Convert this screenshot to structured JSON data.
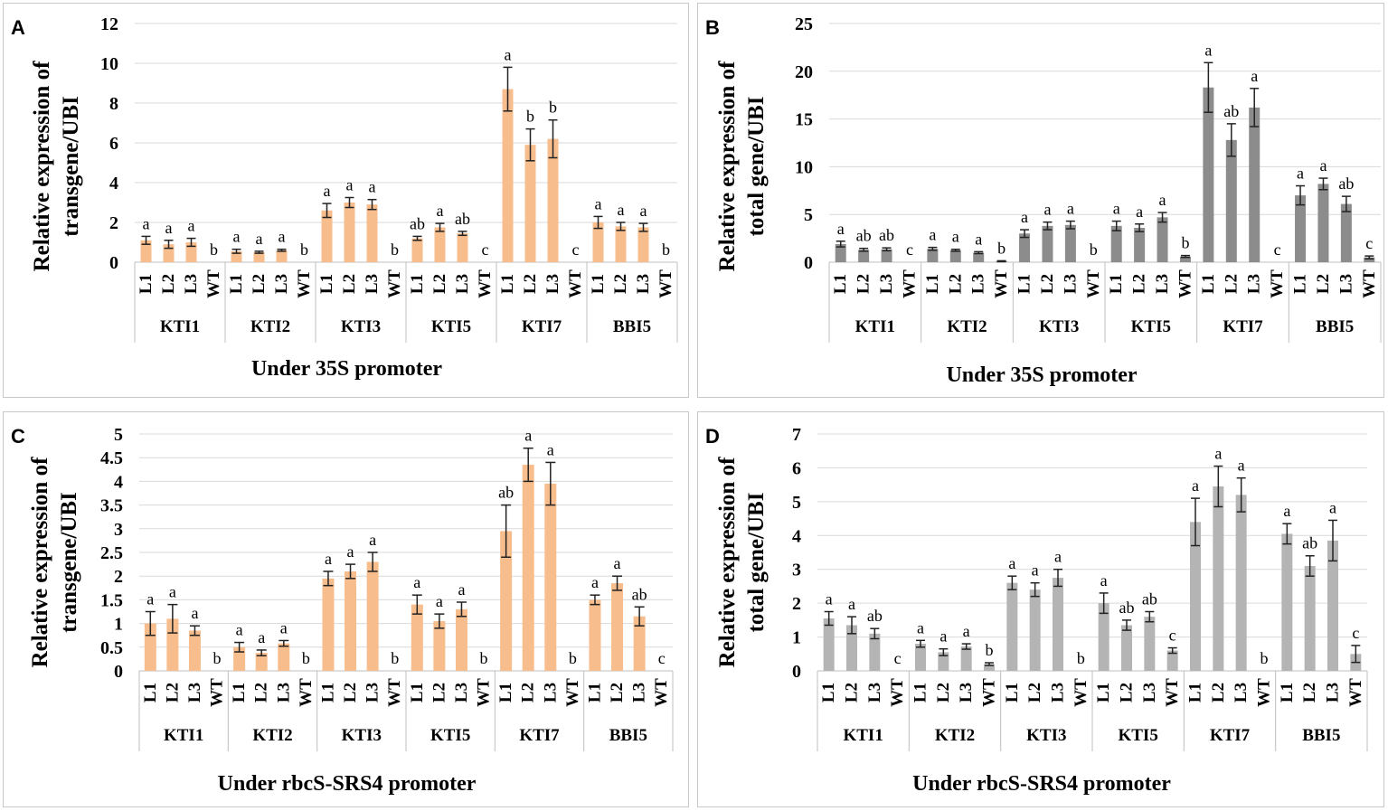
{
  "colors": {
    "orange_bar": "#f7bd8c",
    "orange_edge": "#e8995a",
    "dark_gray_bar": "#8c8c8c",
    "light_gray_bar": "#b4b4b4",
    "grid": "#d9d9d9",
    "axis": "#bfbfbf"
  },
  "chart_data": [
    {
      "type": "bar",
      "panel_label": "A",
      "ylabel_line1": "Relative  expression of",
      "ylabel_line2": "transgene/UBI",
      "footer": "Under 35S promoter",
      "ylim": [
        0,
        12
      ],
      "yticks": [
        "0",
        "2",
        "4",
        "6",
        "8",
        "10",
        "12"
      ],
      "categories": [
        "L1",
        "L2",
        "L3",
        "WT"
      ],
      "groups": [
        "KTI1",
        "KTI2",
        "KTI3",
        "KTI5",
        "KTI7",
        "BBI5"
      ],
      "bar_color": "orange",
      "values": [
        [
          1.1,
          0.9,
          1.0,
          0
        ],
        [
          0.55,
          0.5,
          0.6,
          0
        ],
        [
          2.6,
          3.0,
          2.9,
          0
        ],
        [
          1.2,
          1.75,
          1.45,
          0
        ],
        [
          8.7,
          5.9,
          6.2,
          0
        ],
        [
          2.0,
          1.8,
          1.75,
          0
        ]
      ],
      "errors": [
        [
          0.2,
          0.2,
          0.2,
          0
        ],
        [
          0.1,
          0.05,
          0.05,
          0
        ],
        [
          0.35,
          0.25,
          0.25,
          0
        ],
        [
          0.1,
          0.2,
          0.1,
          0
        ],
        [
          1.1,
          0.8,
          0.95,
          0
        ],
        [
          0.3,
          0.2,
          0.2,
          0
        ]
      ],
      "letters": [
        [
          "a",
          "a",
          "a",
          "b"
        ],
        [
          "a",
          "a",
          "a",
          "b"
        ],
        [
          "a",
          "a",
          "a",
          "b"
        ],
        [
          "ab",
          "a",
          "ab",
          "c"
        ],
        [
          "a",
          "b",
          "b",
          "c"
        ],
        [
          "a",
          "a",
          "a",
          "b"
        ]
      ]
    },
    {
      "type": "bar",
      "panel_label": "B",
      "ylabel_line1": "Relative expression of",
      "ylabel_line2": "total gene/UBI",
      "footer": "Under 35S promoter",
      "ylim": [
        0,
        25
      ],
      "yticks": [
        "0",
        "5",
        "10",
        "15",
        "20",
        "25"
      ],
      "categories": [
        "L1",
        "L2",
        "L3",
        "WT"
      ],
      "groups": [
        "KTI1",
        "KTI2",
        "KTI3",
        "KTI5",
        "KTI7",
        "BBI5"
      ],
      "bar_color": "dark_gray",
      "values": [
        [
          1.9,
          1.3,
          1.35,
          0
        ],
        [
          1.4,
          1.25,
          1.0,
          0.1
        ],
        [
          3.0,
          3.8,
          3.9,
          0
        ],
        [
          3.8,
          3.6,
          4.7,
          0.6
        ],
        [
          18.3,
          12.8,
          16.2,
          0
        ],
        [
          7.0,
          8.2,
          6.1,
          0.5
        ]
      ],
      "errors": [
        [
          0.3,
          0.15,
          0.15,
          0
        ],
        [
          0.15,
          0.1,
          0.1,
          0.05
        ],
        [
          0.4,
          0.4,
          0.4,
          0
        ],
        [
          0.5,
          0.4,
          0.5,
          0.1
        ],
        [
          2.6,
          1.7,
          2.0,
          0
        ],
        [
          1.0,
          0.6,
          0.8,
          0.15
        ]
      ],
      "letters": [
        [
          "a",
          "ab",
          "ab",
          "c"
        ],
        [
          "a",
          "a",
          "a",
          "b"
        ],
        [
          "a",
          "a",
          "a",
          "b"
        ],
        [
          "a",
          "a",
          "a",
          "b"
        ],
        [
          "a",
          "ab",
          "a",
          "c"
        ],
        [
          "a",
          "a",
          "ab",
          "c"
        ]
      ]
    },
    {
      "type": "bar",
      "panel_label": "C",
      "ylabel_line1": "Relative expression of",
      "ylabel_line2": "transgene/UBI",
      "footer": "Under rbcS-SRS4 promoter",
      "ylim": [
        0,
        5
      ],
      "yticks": [
        "0",
        "0.5",
        "1",
        "1.5",
        "2",
        "2.5",
        "3",
        "3.5",
        "4",
        "4.5",
        "5"
      ],
      "categories": [
        "L1",
        "L2",
        "L3",
        "WT"
      ],
      "groups": [
        "KTI1",
        "KTI2",
        "KTI3",
        "KTI5",
        "KTI7",
        "BBI5"
      ],
      "bar_color": "orange",
      "values": [
        [
          1.0,
          1.1,
          0.85,
          0
        ],
        [
          0.5,
          0.38,
          0.58,
          0
        ],
        [
          1.95,
          2.1,
          2.3,
          0
        ],
        [
          1.4,
          1.05,
          1.3,
          0
        ],
        [
          2.95,
          4.35,
          3.95,
          0
        ],
        [
          1.5,
          1.85,
          1.15,
          0
        ]
      ],
      "errors": [
        [
          0.25,
          0.3,
          0.1,
          0
        ],
        [
          0.1,
          0.06,
          0.06,
          0
        ],
        [
          0.15,
          0.15,
          0.2,
          0
        ],
        [
          0.2,
          0.15,
          0.15,
          0
        ],
        [
          0.55,
          0.35,
          0.45,
          0
        ],
        [
          0.1,
          0.15,
          0.2,
          0
        ]
      ],
      "letters": [
        [
          "a",
          "a",
          "a",
          "b"
        ],
        [
          "a",
          "a",
          "a",
          "b"
        ],
        [
          "a",
          "a",
          "a",
          "b"
        ],
        [
          "a",
          "a",
          "a",
          "b"
        ],
        [
          "ab",
          "a",
          "a",
          "b"
        ],
        [
          "a",
          "a",
          "ab",
          "c"
        ]
      ]
    },
    {
      "type": "bar",
      "panel_label": "D",
      "ylabel_line1": "Relative expression of",
      "ylabel_line2": "total gene/UBI",
      "footer": "Under rbcS-SRS4 promoter",
      "ylim": [
        0,
        7
      ],
      "yticks": [
        "0",
        "1",
        "2",
        "3",
        "4",
        "5",
        "6",
        "7"
      ],
      "categories": [
        "L1",
        "L2",
        "L3",
        "WT"
      ],
      "groups": [
        "KTI1",
        "KTI2",
        "KTI3",
        "KTI5",
        "KTI7",
        "BBI5"
      ],
      "bar_color": "light_gray",
      "values": [
        [
          1.55,
          1.35,
          1.1,
          0
        ],
        [
          0.8,
          0.55,
          0.72,
          0.2
        ],
        [
          2.6,
          2.4,
          2.75,
          0
        ],
        [
          2.0,
          1.35,
          1.6,
          0.6
        ],
        [
          4.4,
          5.45,
          5.2,
          0
        ],
        [
          4.05,
          3.1,
          3.85,
          0.5
        ]
      ],
      "errors": [
        [
          0.2,
          0.25,
          0.15,
          0
        ],
        [
          0.1,
          0.1,
          0.08,
          0.04
        ],
        [
          0.2,
          0.2,
          0.25,
          0
        ],
        [
          0.3,
          0.15,
          0.15,
          0.08
        ],
        [
          0.7,
          0.6,
          0.5,
          0
        ],
        [
          0.3,
          0.3,
          0.6,
          0.25
        ]
      ],
      "letters": [
        [
          "a",
          "a",
          "ab",
          "c"
        ],
        [
          "a",
          "a",
          "a",
          "b"
        ],
        [
          "a",
          "a",
          "a",
          "b"
        ],
        [
          "a",
          "ab",
          "ab",
          "c"
        ],
        [
          "a",
          "a",
          "a",
          "b"
        ],
        [
          "a",
          "ab",
          "a",
          "c"
        ]
      ]
    }
  ]
}
